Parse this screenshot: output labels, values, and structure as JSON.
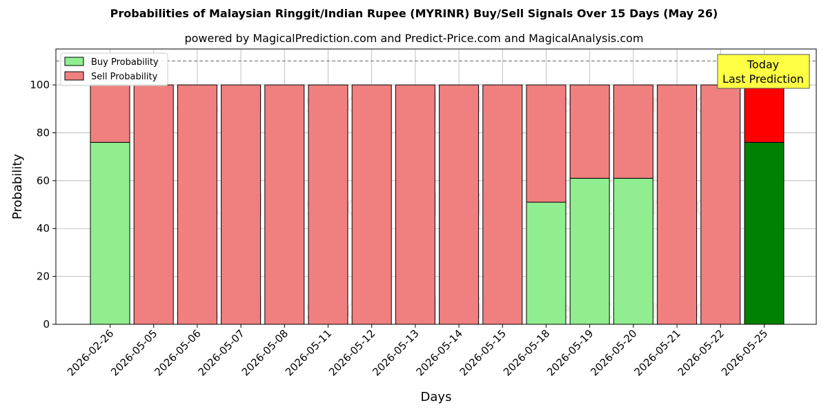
{
  "title": "Probabilities of Malaysian Ringgit/Indian Rupee (MYRINR) Buy/Sell Signals Over 15 Days (May 26)",
  "subtitle": "powered by MagicalPrediction.com and Predict-Price.com and MagicalAnalysis.com",
  "watermarks": [
    "MagicalAnalysis.com",
    "MagicalPrediction.com"
  ],
  "today_box": {
    "line1": "Today",
    "line2": "Last Prediction",
    "color": "#ffff44"
  },
  "colors": {
    "buy": "#90ee90",
    "sell": "#f08080",
    "buy_today": "#008000",
    "sell_today": "#ff0000"
  },
  "chart_data": {
    "type": "bar",
    "stacked": true,
    "xlabel": "Days",
    "ylabel": "Probability",
    "ylim": [
      0,
      115
    ],
    "yticks": [
      0,
      20,
      40,
      60,
      80,
      100
    ],
    "threshold_line": 110,
    "grid": true,
    "legend_position": "top-left",
    "categories": [
      "2026-02-26",
      "2026-05-05",
      "2026-05-06",
      "2026-05-07",
      "2026-05-08",
      "2026-05-11",
      "2026-05-12",
      "2026-05-13",
      "2026-05-14",
      "2026-05-15",
      "2026-05-18",
      "2026-05-19",
      "2026-05-20",
      "2026-05-21",
      "2026-05-22",
      "2026-05-25"
    ],
    "series": [
      {
        "name": "Buy Probability",
        "values": [
          76,
          0,
          0,
          0,
          0,
          0,
          0,
          0,
          0,
          0,
          51,
          61,
          61,
          0,
          0,
          76
        ]
      },
      {
        "name": "Sell Probability",
        "values": [
          24,
          100,
          100,
          100,
          100,
          100,
          100,
          100,
          100,
          100,
          49,
          39,
          39,
          100,
          100,
          24
        ]
      }
    ]
  }
}
